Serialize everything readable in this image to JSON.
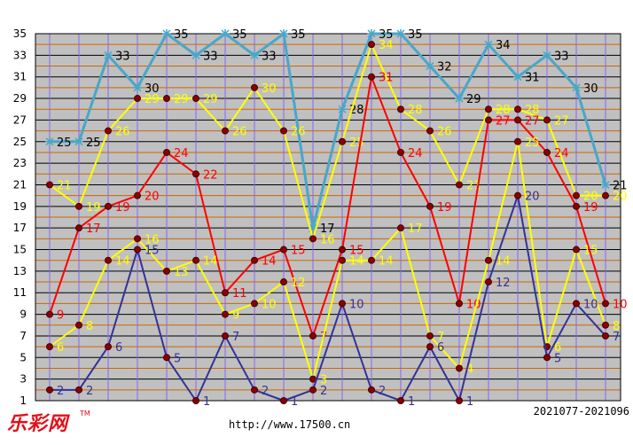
{
  "chart_data": {
    "type": "line",
    "x_count": 20,
    "ylim": [
      1,
      35
    ],
    "yticks": [
      1,
      3,
      5,
      7,
      9,
      11,
      13,
      15,
      17,
      19,
      21,
      23,
      25,
      27,
      29,
      31,
      33,
      35
    ],
    "grid": true,
    "range_label": "2021077-2021096",
    "series": [
      {
        "color": "#4aa6c8",
        "label_color": "#000000",
        "marker": "star",
        "values": [
          25,
          25,
          33,
          30,
          35,
          33,
          35,
          33,
          35,
          17,
          28,
          35,
          35,
          32,
          29,
          34,
          31,
          33,
          30,
          21
        ]
      },
      {
        "color": "#ffff00",
        "label_color": "#ffff00",
        "marker": "dot",
        "values": [
          21,
          19,
          26,
          29,
          29,
          29,
          26,
          30,
          26,
          16,
          25,
          34,
          28,
          26,
          21,
          28,
          28,
          27,
          20,
          20
        ]
      },
      {
        "color": "#ff0000",
        "label_color": "#ff0000",
        "marker": "dot",
        "values": [
          9,
          17,
          19,
          20,
          24,
          22,
          11,
          14,
          15,
          7,
          15,
          31,
          24,
          19,
          10,
          27,
          27,
          24,
          19,
          10
        ]
      },
      {
        "color": "#ffff00",
        "label_color": "#ffff00",
        "marker": "dot",
        "values": [
          6,
          8,
          14,
          16,
          13,
          14,
          9,
          10,
          12,
          3,
          14,
          14,
          17,
          7,
          4,
          14,
          25,
          6,
          15,
          8
        ]
      },
      {
        "color": "#333399",
        "label_color": "#333399",
        "marker": "dot",
        "values": [
          2,
          2,
          6,
          15,
          5,
          1,
          7,
          2,
          1,
          2,
          10,
          2,
          1,
          6,
          1,
          12,
          20,
          5,
          10,
          7
        ]
      }
    ]
  },
  "footer": {
    "brand": "乐彩网",
    "tm": "TM",
    "url": "http://www.17500.cn"
  }
}
